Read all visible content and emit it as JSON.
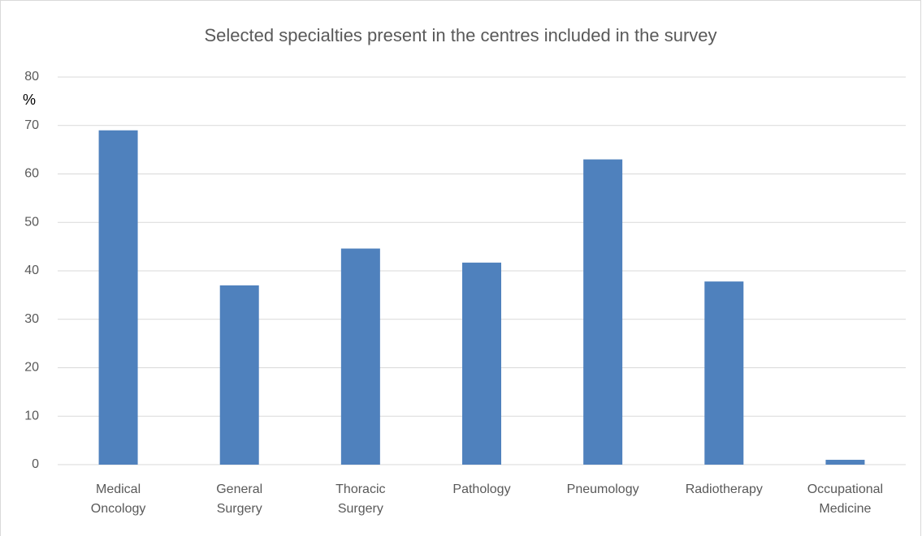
{
  "chart_data": {
    "type": "bar",
    "title": "Selected specialties present in the centres included in the survey",
    "y_label": "%",
    "categories": [
      "Medical Oncology",
      "General Surgery",
      "Thoracic Surgery",
      "Pathology",
      "Pneumology",
      "Radiotherapy",
      "Occupational Medicine"
    ],
    "values": [
      69,
      37,
      44.6,
      41.7,
      63,
      37.8,
      1
    ],
    "color": "#4f81bd",
    "ylim": [
      0,
      80
    ],
    "yticks": [
      0,
      10,
      20,
      30,
      40,
      50,
      60,
      70,
      80
    ],
    "grid": true
  }
}
